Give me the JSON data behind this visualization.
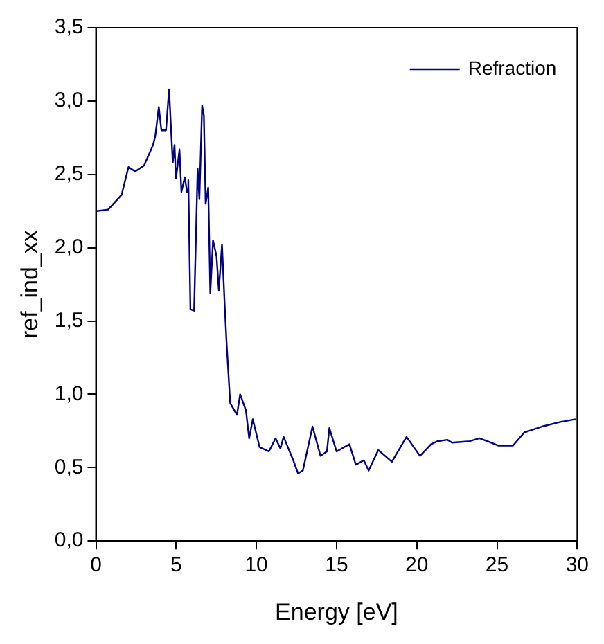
{
  "chart_data": {
    "type": "line",
    "xlabel": "Energy [eV]",
    "ylabel": "ref_ind_xx",
    "legend": "top right",
    "grid": false,
    "marker": "none",
    "line_style": "solid",
    "xlim": [
      0,
      30
    ],
    "xticks": [
      0,
      5,
      10,
      15,
      20,
      25,
      30
    ],
    "ylim": [
      0,
      3.5
    ],
    "yticks": [
      {
        "value": 0,
        "label": "0,0"
      },
      {
        "value": 0.5,
        "label": "0,5"
      },
      {
        "value": 1,
        "label": "1,0"
      },
      {
        "value": 1.5,
        "label": "1,5"
      },
      {
        "value": 2,
        "label": "2,0"
      },
      {
        "value": 2.5,
        "label": "2,5"
      },
      {
        "value": 3,
        "label": "3,0"
      },
      {
        "value": 3.5,
        "label": "3,5"
      }
    ],
    "series": [
      {
        "name": "Refraction",
        "color": "#000080",
        "x": [
          0.05,
          0.76,
          1.6,
          2.03,
          2.45,
          3.0,
          3.56,
          3.7,
          3.92,
          4.08,
          4.37,
          4.56,
          4.79,
          4.9,
          4.99,
          5.21,
          5.33,
          5.54,
          5.68,
          5.76,
          5.89,
          6.12,
          6.34,
          6.45,
          6.62,
          6.73,
          6.84,
          7.0,
          7.13,
          7.3,
          7.52,
          7.66,
          7.86,
          8.03,
          8.14,
          8.37,
          8.79,
          8.99,
          9.35,
          9.55,
          9.78,
          10.2,
          10.78,
          11.2,
          11.5,
          11.7,
          12.3,
          12.6,
          12.9,
          13.5,
          14.0,
          14.4,
          14.55,
          15.0,
          15.8,
          16.2,
          16.7,
          17.0,
          17.6,
          18.45,
          19.36,
          20.2,
          20.9,
          21.3,
          21.9,
          22.2,
          23.3,
          23.9,
          24.4,
          25.1,
          26.0,
          26.7,
          27.8,
          28.9,
          29.9
        ],
        "values": [
          2.25,
          2.26,
          2.36,
          2.55,
          2.52,
          2.56,
          2.7,
          2.76,
          2.96,
          2.8,
          2.8,
          3.08,
          2.58,
          2.7,
          2.47,
          2.67,
          2.38,
          2.48,
          2.38,
          2.46,
          1.58,
          1.57,
          2.54,
          2.33,
          2.97,
          2.9,
          2.3,
          2.41,
          1.69,
          2.05,
          1.94,
          1.71,
          2.02,
          1.6,
          1.36,
          0.94,
          0.86,
          1.0,
          0.89,
          0.7,
          0.83,
          0.64,
          0.61,
          0.7,
          0.63,
          0.71,
          0.55,
          0.46,
          0.48,
          0.78,
          0.58,
          0.61,
          0.77,
          0.61,
          0.66,
          0.52,
          0.55,
          0.48,
          0.62,
          0.54,
          0.71,
          0.58,
          0.66,
          0.68,
          0.69,
          0.67,
          0.68,
          0.7,
          0.68,
          0.65,
          0.65,
          0.74,
          0.78,
          0.81,
          0.83
        ]
      }
    ]
  }
}
